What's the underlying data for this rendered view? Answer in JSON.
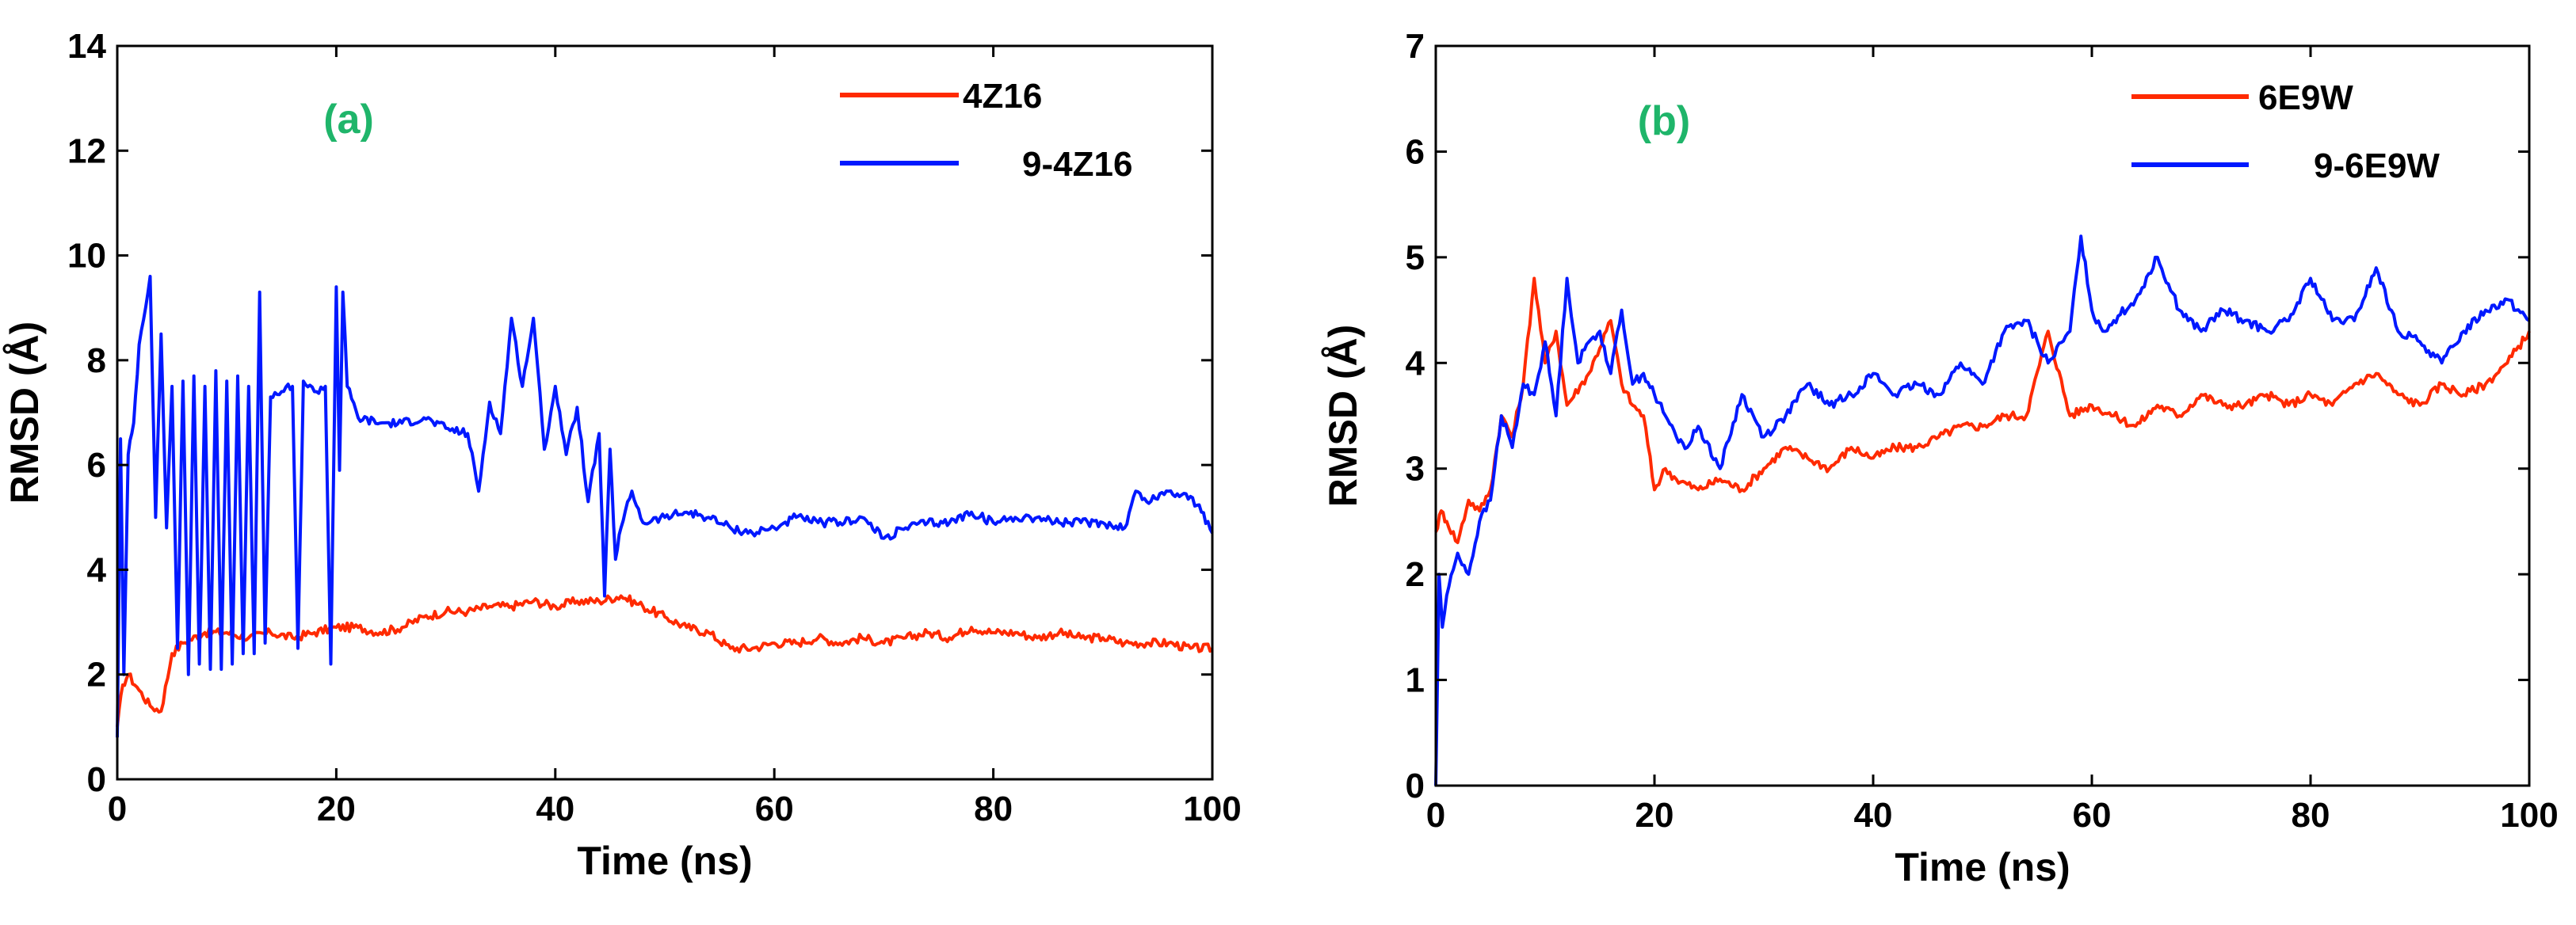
{
  "colors": {
    "series1": "#ff2a00",
    "series2": "#0018ff",
    "panel_label": "#1fb56a",
    "axes": "#000000"
  },
  "chart_data": [
    {
      "type": "line",
      "panel_label": "(a)",
      "xlabel": "Time (ns)",
      "ylabel": "RMSD (Å)",
      "xlim": [
        0,
        100
      ],
      "ylim": [
        0,
        14
      ],
      "xticks": [
        0,
        20,
        40,
        60,
        80,
        100
      ],
      "yticks": [
        0,
        2,
        4,
        6,
        8,
        10,
        12,
        14
      ],
      "legend_position": "top-right",
      "series": [
        {
          "name": "4Z16",
          "color": "#ff2a00",
          "x": [
            0,
            0.5,
            1,
            2,
            3,
            4,
            5,
            6,
            8,
            10,
            12,
            14,
            16,
            18,
            20,
            22,
            24,
            26,
            28,
            30,
            32,
            34,
            36,
            38,
            40,
            42,
            44,
            46,
            48,
            50,
            52,
            54,
            56,
            58,
            60,
            62,
            64,
            66,
            68,
            70,
            72,
            74,
            76,
            78,
            80,
            82,
            84,
            86,
            88,
            90,
            92,
            94,
            96,
            98,
            100
          ],
          "y": [
            1.0,
            1.8,
            2.0,
            1.7,
            1.4,
            1.3,
            2.4,
            2.6,
            2.8,
            2.8,
            2.7,
            2.8,
            2.7,
            2.8,
            2.9,
            2.9,
            2.8,
            2.9,
            3.1,
            3.2,
            3.2,
            3.3,
            3.3,
            3.4,
            3.3,
            3.4,
            3.4,
            3.5,
            3.3,
            3.1,
            2.9,
            2.8,
            2.5,
            2.5,
            2.6,
            2.6,
            2.7,
            2.6,
            2.7,
            2.6,
            2.7,
            2.8,
            2.7,
            2.9,
            2.8,
            2.8,
            2.7,
            2.8,
            2.7,
            2.7,
            2.6,
            2.6,
            2.6,
            2.5,
            2.5
          ]
        },
        {
          "name": "9-4Z16",
          "color": "#0018ff",
          "x": [
            0,
            0.3,
            0.6,
            1,
            1.5,
            2,
            3,
            3.5,
            4,
            4.5,
            5,
            5.5,
            6,
            6.5,
            7,
            7.5,
            8,
            8.5,
            9,
            9.5,
            10,
            10.5,
            11,
            11.5,
            12,
            12.5,
            13,
            13.5,
            14,
            15,
            16,
            16.5,
            17,
            18,
            19,
            19.5,
            20,
            20.3,
            20.6,
            21,
            22,
            24,
            26,
            28,
            30,
            32,
            33,
            34,
            35,
            36,
            37,
            38,
            39,
            40,
            41,
            42,
            43,
            44,
            44.5,
            45,
            45.5,
            46,
            47,
            48,
            50,
            52,
            54,
            56,
            58,
            60,
            62,
            64,
            66,
            68,
            70,
            72,
            74,
            76,
            78,
            80,
            82,
            84,
            86,
            88,
            90,
            92,
            93,
            94,
            96,
            98,
            99,
            100
          ],
          "y": [
            0.8,
            6.5,
            2.0,
            6.2,
            6.8,
            8.3,
            9.6,
            5.0,
            8.5,
            4.8,
            7.5,
            2.5,
            7.6,
            2.0,
            7.7,
            2.2,
            7.5,
            2.1,
            7.8,
            2.1,
            7.6,
            2.2,
            7.7,
            2.4,
            7.5,
            2.4,
            9.3,
            2.6,
            7.3,
            7.4,
            7.5,
            2.5,
            7.6,
            7.4,
            7.5,
            2.2,
            9.4,
            5.9,
            9.3,
            7.5,
            6.9,
            6.8,
            6.8,
            6.9,
            6.7,
            6.6,
            5.5,
            7.2,
            6.6,
            8.8,
            7.5,
            8.8,
            6.3,
            7.5,
            6.2,
            7.1,
            5.3,
            6.6,
            3.5,
            6.3,
            4.2,
            4.8,
            5.5,
            4.9,
            5.0,
            5.1,
            5.0,
            4.8,
            4.7,
            4.8,
            5.0,
            4.9,
            4.9,
            5.0,
            4.6,
            4.8,
            4.9,
            4.9,
            5.1,
            4.9,
            5.0,
            5.0,
            4.9,
            4.9,
            4.9,
            4.8,
            5.5,
            5.3,
            5.5,
            5.4,
            5.1,
            4.7
          ]
        }
      ]
    },
    {
      "type": "line",
      "panel_label": "(b)",
      "xlabel": "Time (ns)",
      "ylabel": "RMSD (Å)",
      "xlim": [
        0,
        100
      ],
      "ylim": [
        0,
        7
      ],
      "xticks": [
        0,
        20,
        40,
        60,
        80,
        100
      ],
      "yticks": [
        0,
        1,
        2,
        3,
        4,
        5,
        6,
        7
      ],
      "legend_position": "top-right",
      "series": [
        {
          "name": "6E9W",
          "color": "#ff2a00",
          "x": [
            0,
            0.5,
            1,
            2,
            3,
            4,
            5,
            6,
            7,
            8,
            9,
            10,
            11,
            12,
            14,
            16,
            17,
            18,
            19,
            20,
            21,
            22,
            24,
            26,
            28,
            30,
            32,
            34,
            36,
            38,
            40,
            42,
            44,
            46,
            48,
            50,
            52,
            54,
            56,
            58,
            60,
            62,
            64,
            66,
            68,
            70,
            72,
            74,
            76,
            78,
            80,
            82,
            84,
            86,
            88,
            90,
            92,
            94,
            96,
            98,
            100
          ],
          "y": [
            2.4,
            2.6,
            2.5,
            2.3,
            2.7,
            2.6,
            2.8,
            3.5,
            3.3,
            3.8,
            4.8,
            4.0,
            4.3,
            3.6,
            3.9,
            4.4,
            3.8,
            3.6,
            3.5,
            2.8,
            3.0,
            2.9,
            2.8,
            2.9,
            2.8,
            3.0,
            3.2,
            3.1,
            3.0,
            3.2,
            3.1,
            3.2,
            3.2,
            3.3,
            3.4,
            3.4,
            3.5,
            3.5,
            4.3,
            3.5,
            3.6,
            3.5,
            3.4,
            3.6,
            3.5,
            3.7,
            3.6,
            3.6,
            3.7,
            3.6,
            3.7,
            3.6,
            3.8,
            3.9,
            3.7,
            3.6,
            3.8,
            3.7,
            3.8,
            4.0,
            4.3
          ]
        },
        {
          "name": "9-6E9W",
          "color": "#0018ff",
          "x": [
            0,
            0.3,
            0.6,
            1,
            2,
            3,
            4,
            5,
            6,
            7,
            8,
            9,
            10,
            11,
            12,
            13,
            14,
            15,
            16,
            17,
            18,
            19,
            20,
            21,
            22,
            23,
            24,
            26,
            28,
            30,
            32,
            34,
            36,
            38,
            40,
            42,
            44,
            46,
            48,
            50,
            52,
            54,
            56,
            58,
            59,
            60,
            61,
            62,
            64,
            66,
            68,
            70,
            72,
            74,
            76,
            78,
            80,
            82,
            84,
            86,
            88,
            90,
            92,
            94,
            96,
            98,
            100
          ],
          "y": [
            0.0,
            2.0,
            1.5,
            1.8,
            2.2,
            2.0,
            2.5,
            2.7,
            3.5,
            3.2,
            3.8,
            3.7,
            4.2,
            3.5,
            4.8,
            4.0,
            4.2,
            4.3,
            3.9,
            4.5,
            3.8,
            3.9,
            3.7,
            3.5,
            3.3,
            3.2,
            3.4,
            3.0,
            3.7,
            3.3,
            3.5,
            3.8,
            3.6,
            3.7,
            3.9,
            3.7,
            3.8,
            3.7,
            4.0,
            3.8,
            4.3,
            4.4,
            4.0,
            4.3,
            5.2,
            4.5,
            4.3,
            4.4,
            4.6,
            5.0,
            4.5,
            4.3,
            4.5,
            4.4,
            4.3,
            4.4,
            4.8,
            4.4,
            4.4,
            4.9,
            4.3,
            4.2,
            4.0,
            4.3,
            4.5,
            4.6,
            4.4
          ]
        }
      ]
    }
  ]
}
